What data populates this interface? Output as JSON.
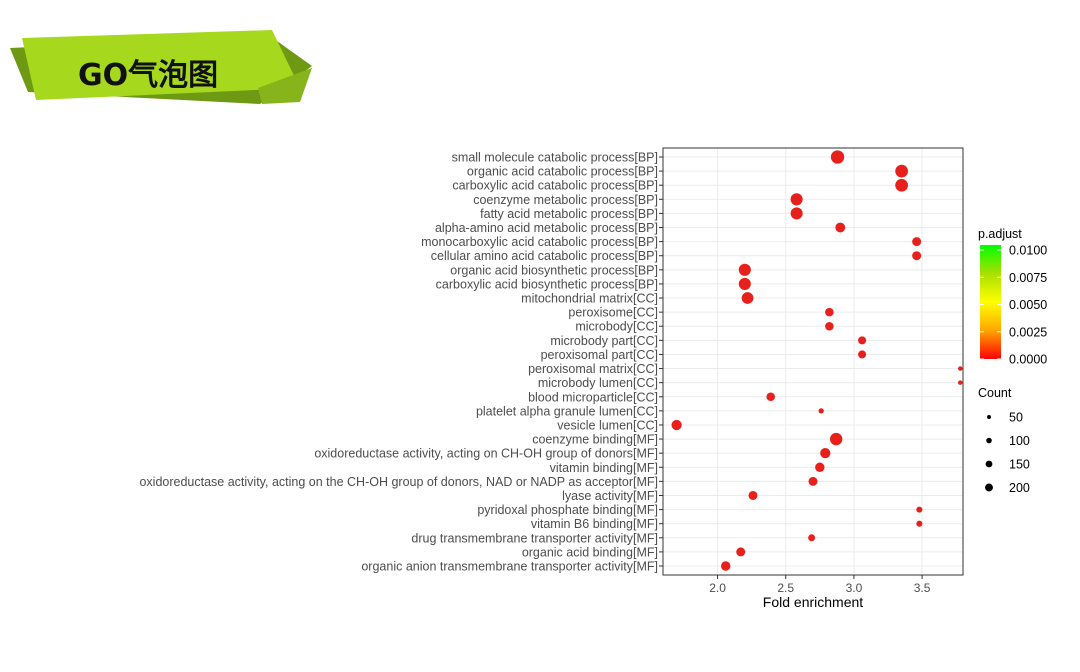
{
  "banner": {
    "title": "GO气泡图",
    "color": "#a6d81e"
  },
  "chart_data": {
    "type": "scatter",
    "xlabel": "Fold enrichment",
    "ylabel": "",
    "xlim": [
      1.6,
      3.8
    ],
    "xticks": [
      "2.0",
      "2.5",
      "3.0",
      "3.5"
    ],
    "grid": true,
    "categories": [
      "small molecule catabolic process[BP]",
      "organic acid catabolic process[BP]",
      "carboxylic acid catabolic process[BP]",
      "coenzyme metabolic process[BP]",
      "fatty acid metabolic process[BP]",
      "alpha-amino acid metabolic process[BP]",
      "monocarboxylic acid catabolic process[BP]",
      "cellular amino acid catabolic process[BP]",
      "organic acid biosynthetic process[BP]",
      "carboxylic acid biosynthetic process[BP]",
      "mitochondrial matrix[CC]",
      "peroxisome[CC]",
      "microbody[CC]",
      "microbody part[CC]",
      "peroxisomal part[CC]",
      "peroxisomal matrix[CC]",
      "microbody lumen[CC]",
      "blood microparticle[CC]",
      "platelet alpha granule lumen[CC]",
      "vesicle lumen[CC]",
      "coenzyme binding[MF]",
      "oxidoreductase activity, acting on CH-OH group of donors[MF]",
      "vitamin binding[MF]",
      "oxidoreductase activity, acting on the CH-OH group of donors, NAD or NADP as acceptor[MF]",
      "lyase activity[MF]",
      "pyridoxal phosphate binding[MF]",
      "vitamin B6 binding[MF]",
      "drug transmembrane transporter activity[MF]",
      "organic acid binding[MF]",
      "organic anion transmembrane transporter activity[MF]"
    ],
    "x": [
      2.88,
      3.35,
      3.35,
      2.58,
      2.58,
      2.9,
      3.46,
      3.46,
      2.2,
      2.2,
      2.22,
      2.82,
      2.82,
      3.06,
      3.06,
      3.78,
      3.78,
      2.39,
      2.76,
      1.7,
      2.87,
      2.79,
      2.75,
      2.7,
      2.26,
      3.48,
      3.48,
      2.69,
      2.17,
      2.06
    ],
    "count": [
      220,
      200,
      200,
      180,
      180,
      120,
      100,
      100,
      180,
      180,
      170,
      90,
      90,
      80,
      80,
      25,
      25,
      90,
      35,
      130,
      190,
      130,
      110,
      100,
      100,
      45,
      45,
      60,
      100,
      110
    ],
    "p_adjust": [
      0,
      0,
      0,
      0,
      0,
      0,
      0,
      0,
      0,
      0,
      0,
      0,
      0,
      0,
      0,
      0,
      0,
      0,
      0,
      0,
      0,
      0,
      0,
      0,
      0,
      0,
      0,
      0,
      0,
      0
    ],
    "color_legend": {
      "title": "p.adjust",
      "labels": [
        "0.0100",
        "0.0075",
        "0.0050",
        "0.0025",
        "0.0000"
      ],
      "gradient": [
        "#00ff00",
        "#a8e000",
        "#ffff00",
        "#ffa500",
        "#ff0000"
      ]
    },
    "size_legend": {
      "title": "Count",
      "labels": [
        "50",
        "100",
        "150",
        "200"
      ],
      "values": [
        50,
        100,
        150,
        200
      ]
    },
    "point_color": "#e8201c"
  }
}
